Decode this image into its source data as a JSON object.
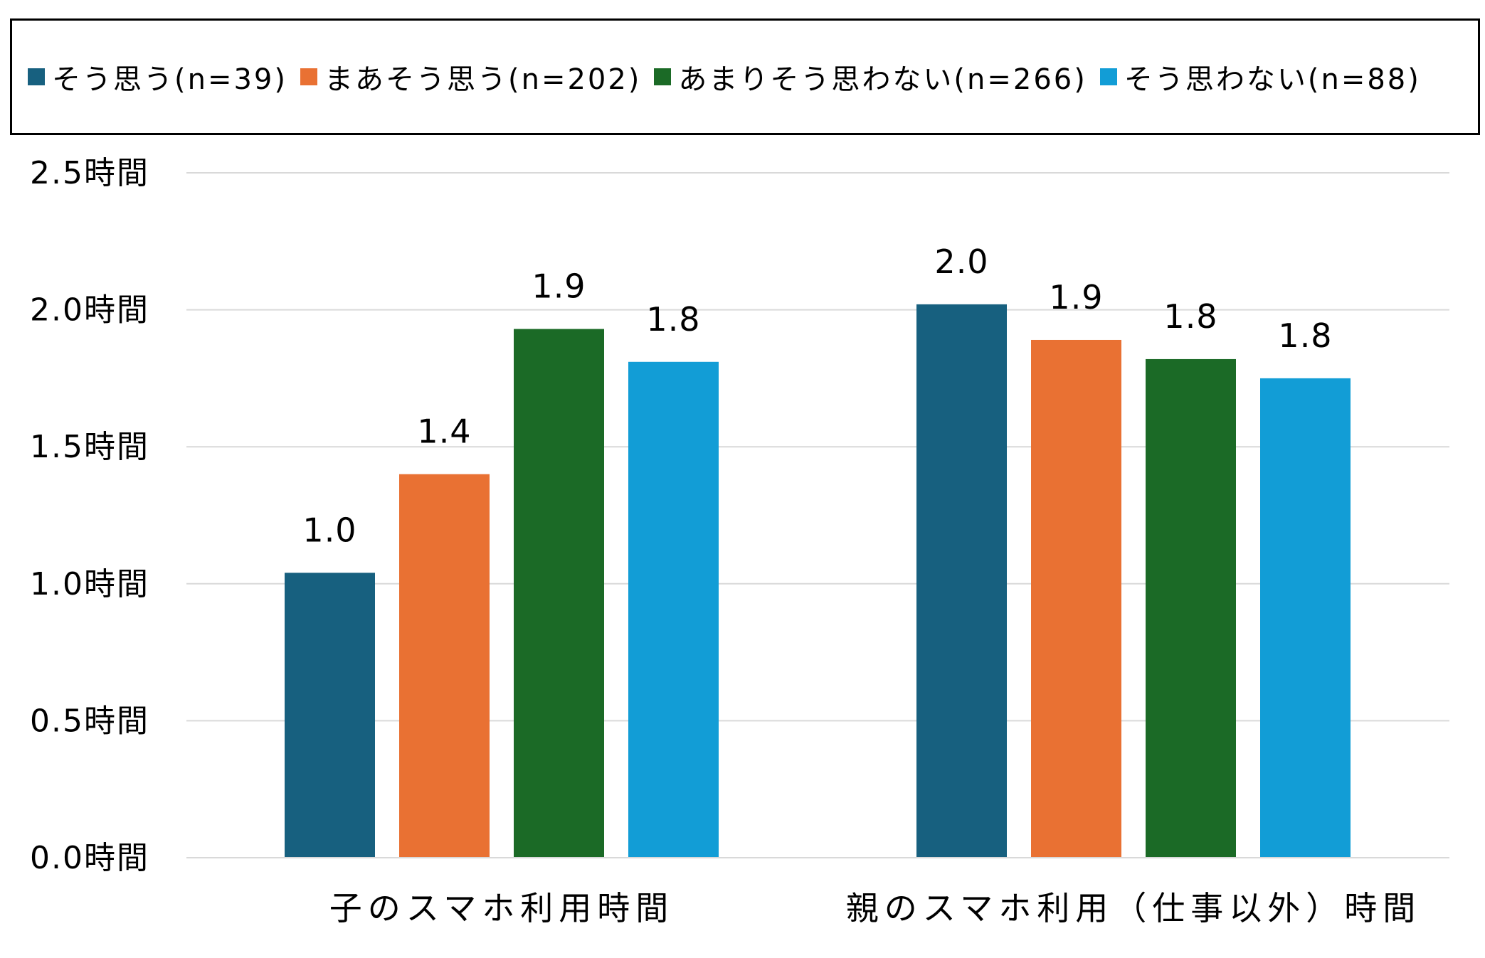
{
  "chart_data": {
    "type": "bar",
    "categories": [
      "子のスマホ利用時間",
      "親のスマホ利用（仕事以外）時間"
    ],
    "series": [
      {
        "name": "そう思う(n=39)",
        "values": [
          1.04,
          2.02
        ],
        "labels": [
          "1.0",
          "2.0"
        ],
        "color": "#17607f"
      },
      {
        "name": "まあそう思う(n=202)",
        "values": [
          1.4,
          1.89
        ],
        "labels": [
          "1.4",
          "1.9"
        ],
        "color": "#e97133"
      },
      {
        "name": "あまりそう思わない(n=266)",
        "values": [
          1.93,
          1.82
        ],
        "labels": [
          "1.9",
          "1.8"
        ],
        "color": "#1b6a26"
      },
      {
        "name": "そう思わない(n=88)",
        "values": [
          1.81,
          1.75
        ],
        "labels": [
          "1.8",
          "1.8"
        ],
        "color": "#129dd6"
      }
    ],
    "yticks": [
      {
        "value": 0.0,
        "label": "0.0時間"
      },
      {
        "value": 0.5,
        "label": "0.5時間"
      },
      {
        "value": 1.0,
        "label": "1.0時間"
      },
      {
        "value": 1.5,
        "label": "1.5時間"
      },
      {
        "value": 2.0,
        "label": "2.0時間"
      },
      {
        "value": 2.5,
        "label": "2.5時間"
      }
    ],
    "ylim": [
      0,
      2.5
    ],
    "grid": true,
    "legend": "top",
    "title": "",
    "xlabel": "",
    "ylabel": ""
  }
}
